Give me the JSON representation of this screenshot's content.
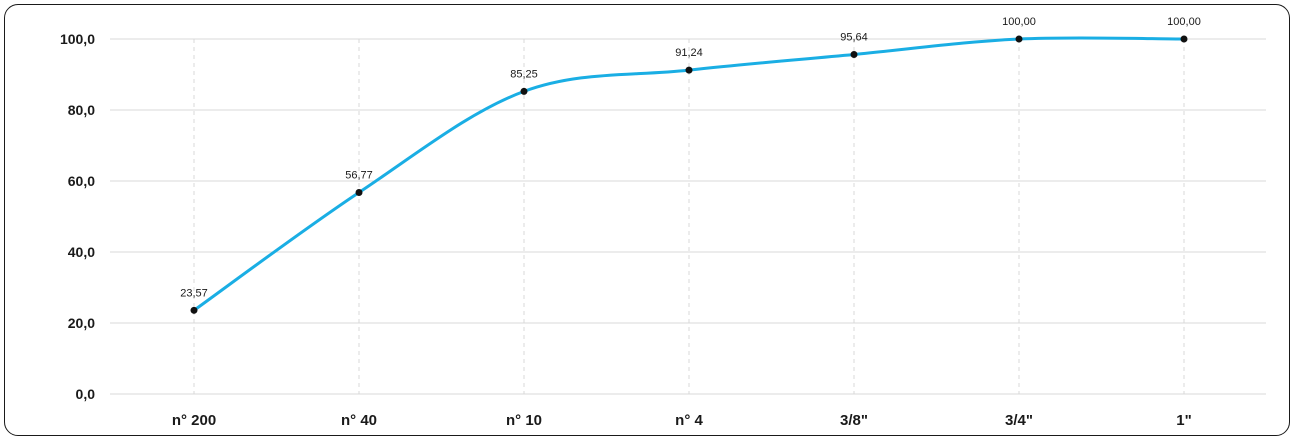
{
  "chart_data": {
    "type": "line",
    "categories": [
      "n° 200",
      "n° 40",
      "n° 10",
      "n° 4",
      "3/8\"",
      "3/4\"",
      "1\""
    ],
    "values": [
      23.57,
      56.77,
      85.25,
      91.24,
      95.64,
      100.0,
      100.0
    ],
    "value_labels": [
      "23,57",
      "56,77",
      "85,25",
      "91,24",
      "95,64",
      "100,00",
      "100,00"
    ],
    "y_tick_labels": [
      "0,0",
      "20,0",
      "40,0",
      "60,0",
      "80,0",
      "100,0"
    ],
    "y_ticks": [
      0,
      20,
      40,
      60,
      80,
      100
    ],
    "ylim": [
      0,
      100
    ],
    "title": "",
    "xlabel": "",
    "ylabel": "",
    "grid": true,
    "smooth": true,
    "colors": {
      "line": "#1aaee4",
      "marker": "#111111",
      "grid": "#d9d9d9"
    }
  }
}
